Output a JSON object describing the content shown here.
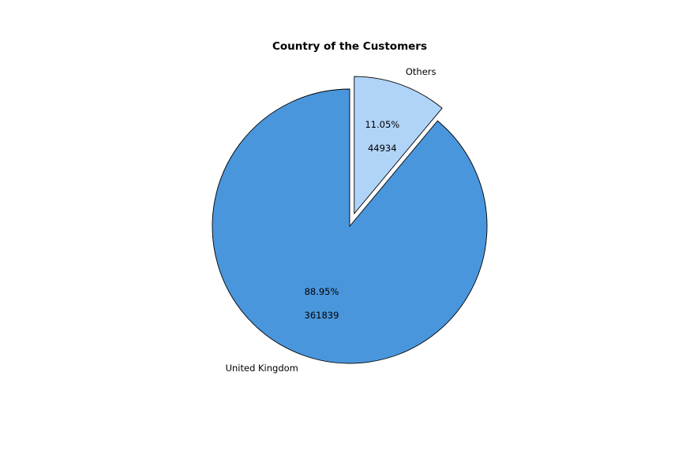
{
  "chart_data": {
    "type": "pie",
    "title": "Country of the Customers",
    "slices": [
      {
        "label": "Others",
        "value": 44934,
        "percent_label": "11.05%",
        "value_label": "44934",
        "color": "#b0d4f8",
        "exploded": true
      },
      {
        "label": "United Kingdom",
        "value": 361839,
        "percent_label": "88.95%",
        "value_label": "361839",
        "color": "#4a96dc",
        "exploded": false
      }
    ],
    "start_angle_deg": 90,
    "direction": "clockwise",
    "edge_color": "#000000"
  }
}
